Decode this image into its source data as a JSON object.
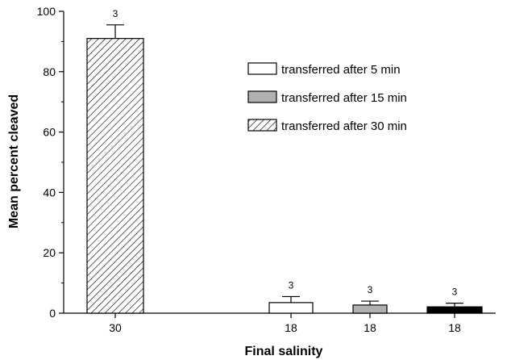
{
  "chart_data": {
    "type": "bar",
    "title": "",
    "xlabel": "Final salinity",
    "ylabel": "Mean percent cleaved",
    "ylim": [
      0,
      100
    ],
    "yticks": [
      0,
      20,
      40,
      60,
      80,
      100
    ],
    "grid": false,
    "legend_position": "top-right",
    "categories": [
      "30",
      "18",
      "18",
      "18"
    ],
    "bars": [
      {
        "category": "30",
        "value": 91,
        "error": 4.5,
        "n": "3",
        "style": "hatched"
      },
      {
        "category": "18",
        "value": 3.5,
        "error": 2,
        "n": "3",
        "style": "white"
      },
      {
        "category": "18",
        "value": 2.7,
        "error": 1.3,
        "n": "3",
        "style": "gray"
      },
      {
        "category": "18",
        "value": 2.1,
        "error": 1.2,
        "n": "3",
        "style": "black"
      }
    ],
    "legend": [
      {
        "label": "transferred after 5 min",
        "style": "white"
      },
      {
        "label": "transferred after 15 min",
        "style": "gray"
      },
      {
        "label": "transferred after 30 min",
        "style": "hatched"
      }
    ],
    "colors": {
      "white": "#ffffff",
      "gray": "#b0b0b0",
      "black": "#000000",
      "hatched": "#000000"
    }
  }
}
